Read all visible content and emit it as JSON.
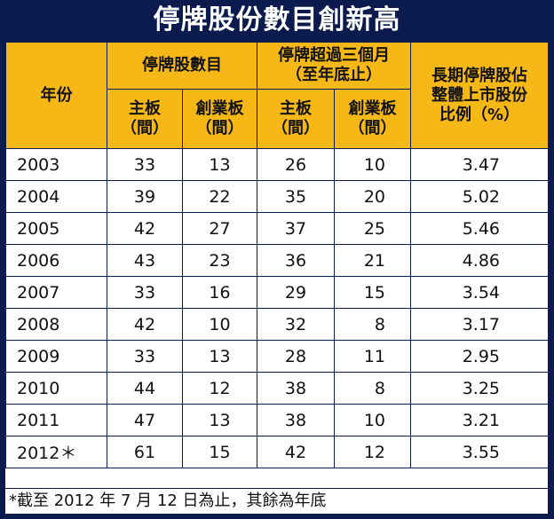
{
  "title": "停牌股份數目創新高",
  "chart_data": {
    "type": "table",
    "headers": {
      "year": "年份",
      "group1": "停牌股數目",
      "group2_line1": "停牌超過三個月",
      "group2_line2": "（至年底止）",
      "ratio_line1": "長期停牌股佔",
      "ratio_line2": "整體上市股份",
      "ratio_line3": "比例（%）",
      "main_board_1": "主板",
      "main_board_2": "（間）",
      "gem_1": "創業板",
      "gem_2": "（間）",
      "main_board2_1": "主板",
      "main_board2_2": "（間）",
      "gem2_1": "創業板",
      "gem2_2": "（間）"
    },
    "rows": [
      {
        "year": "2003",
        "suspended_main": 33,
        "suspended_gem": 13,
        "long_main": 26,
        "long_gem": 10,
        "ratio": "3.47"
      },
      {
        "year": "2004",
        "suspended_main": 39,
        "suspended_gem": 22,
        "long_main": 35,
        "long_gem": 20,
        "ratio": "5.02"
      },
      {
        "year": "2005",
        "suspended_main": 42,
        "suspended_gem": 27,
        "long_main": 37,
        "long_gem": 25,
        "ratio": "5.46"
      },
      {
        "year": "2006",
        "suspended_main": 43,
        "suspended_gem": 23,
        "long_main": 36,
        "long_gem": 21,
        "ratio": "4.86"
      },
      {
        "year": "2007",
        "suspended_main": 33,
        "suspended_gem": 16,
        "long_main": 29,
        "long_gem": 15,
        "ratio": "3.54"
      },
      {
        "year": "2008",
        "suspended_main": 42,
        "suspended_gem": 10,
        "long_main": 32,
        "long_gem": 8,
        "ratio": "3.17"
      },
      {
        "year": "2009",
        "suspended_main": 33,
        "suspended_gem": 13,
        "long_main": 28,
        "long_gem": 11,
        "ratio": "2.95"
      },
      {
        "year": "2010",
        "suspended_main": 44,
        "suspended_gem": 12,
        "long_main": 38,
        "long_gem": 8,
        "ratio": "3.25"
      },
      {
        "year": "2011",
        "suspended_main": 47,
        "suspended_gem": 13,
        "long_main": 38,
        "long_gem": 10,
        "ratio": "3.21"
      },
      {
        "year": "2012＊",
        "suspended_main": 61,
        "suspended_gem": 15,
        "long_main": 42,
        "long_gem": 12,
        "ratio": "3.55"
      }
    ],
    "footnote": "*截至 2012 年 7 月 12 日為止，其餘為年底"
  },
  "colors": {
    "background": "#0b1b4d",
    "header_fill": "#f5b817",
    "title_text": "#ffffff"
  }
}
